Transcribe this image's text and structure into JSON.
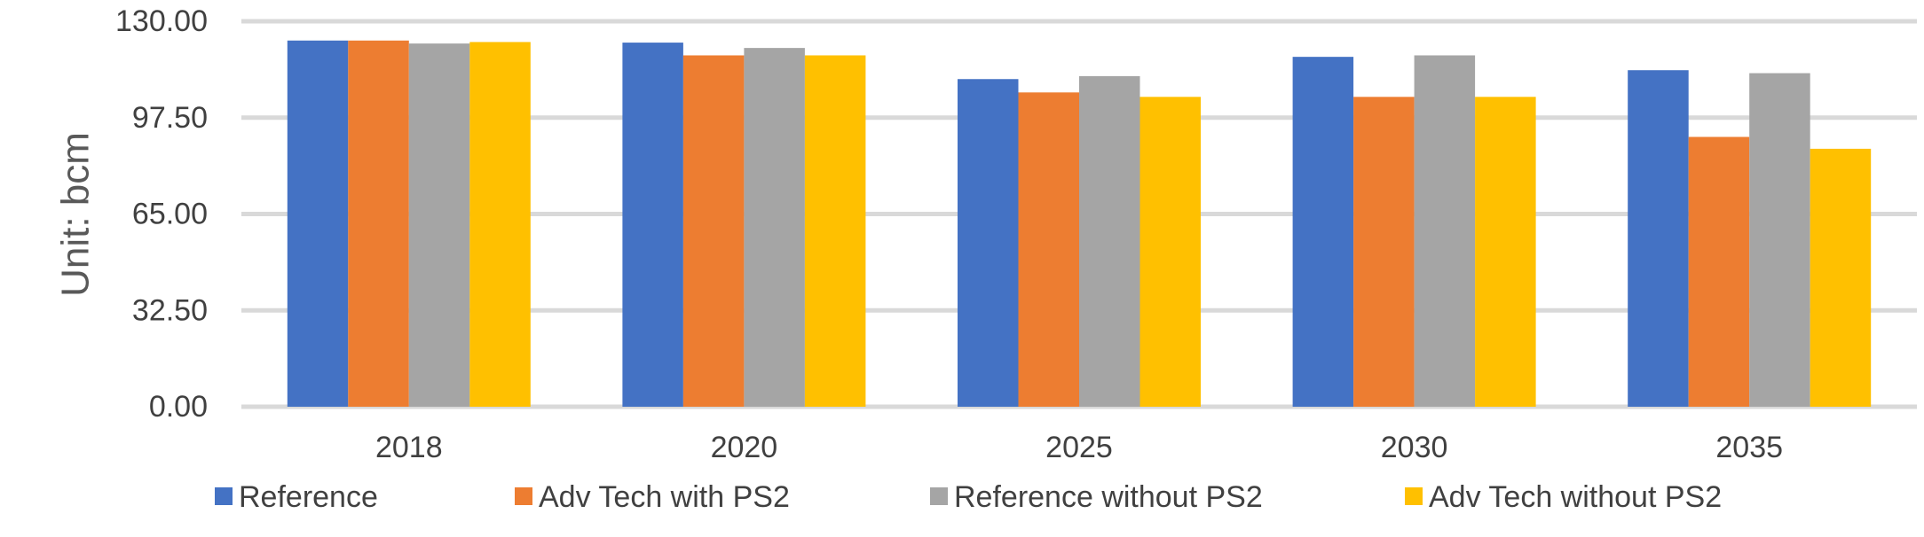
{
  "chart_data": {
    "type": "bar",
    "title": "",
    "xlabel": "",
    "ylabel": "Unit: bcm",
    "ylim": [
      0,
      130
    ],
    "yticks": [
      "0.00",
      "32.50",
      "65.00",
      "97.50",
      "130.00"
    ],
    "ytick_values": [
      0,
      32.5,
      65,
      97.5,
      130
    ],
    "grid": true,
    "legend_position": "bottom",
    "categories": [
      "2018",
      "2020",
      "2025",
      "2030",
      "2035"
    ],
    "series": [
      {
        "name": "Reference",
        "color": "#4472C4",
        "values": [
          123.5,
          122.8,
          110.5,
          118.0,
          113.5
        ]
      },
      {
        "name": "Adv Tech with PS2",
        "color": "#ED7D31",
        "values": [
          123.5,
          118.5,
          106.0,
          104.5,
          91.0
        ]
      },
      {
        "name": "Reference without PS2",
        "color": "#A5A5A5",
        "values": [
          122.5,
          121.0,
          111.5,
          118.5,
          112.5
        ]
      },
      {
        "name": "Adv Tech without PS2",
        "color": "#FFC000",
        "values": [
          123.0,
          118.5,
          104.5,
          104.5,
          87.0
        ]
      }
    ]
  }
}
